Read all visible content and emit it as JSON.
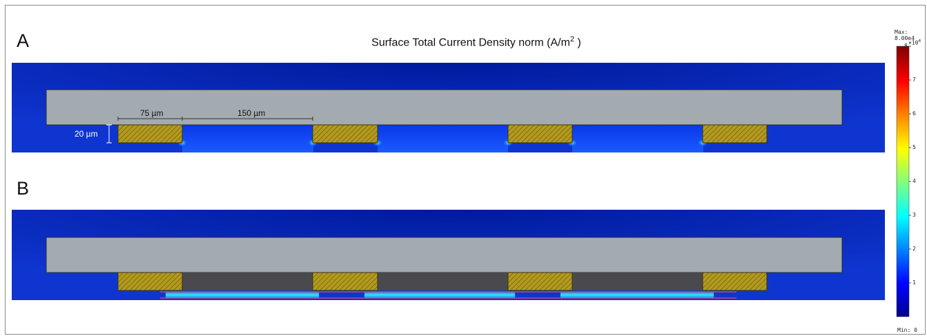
{
  "title": {
    "main": "Surface Total Current Density norm (A/m",
    "sup": "2",
    "close": " )"
  },
  "panels": {
    "a_label": "A",
    "b_label": "B"
  },
  "dimensions": {
    "electrode_width": "75 µm",
    "gap_width": "150 µm",
    "electrode_height": "20 µm"
  },
  "colorbar": {
    "max_label": "Max: 8.00e4",
    "min_label": "Min: 0",
    "exponent_label": "×10",
    "exponent_power": "4",
    "ticks": [
      "8",
      "7",
      "6",
      "5",
      "4",
      "3",
      "2",
      "1"
    ],
    "colors": [
      "#00008f",
      "#0000ff",
      "#00ffff",
      "#ffff00",
      "#ff7f00",
      "#ff0000",
      "#800000"
    ]
  },
  "colors": {
    "background_field": "#0a2bc0",
    "substrate": "#a3abb0",
    "electrode": "#a8901a",
    "dielectric_layer": "#4a4a4e",
    "high_current": "#2ee6f0"
  }
}
